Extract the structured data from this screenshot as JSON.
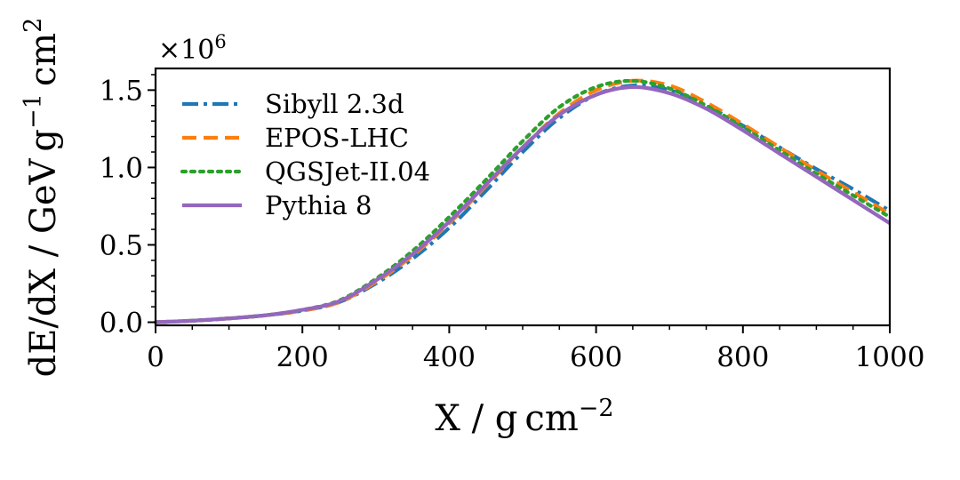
{
  "chart_data": {
    "type": "line",
    "title": "",
    "xlabel_main": "X / g",
    "xlabel_unit": "cm",
    "xlabel_exp": "−2",
    "ylabel_main": "dE/dX / GeV",
    "ylabel_g": "g",
    "ylabel_g_exp": "−1",
    "ylabel_cm": "cm",
    "ylabel_cm_exp": "2",
    "offset_base": "×10",
    "offset_exp": "6",
    "xlim": [
      0,
      1000
    ],
    "ylim": [
      -0.02,
      1.64
    ],
    "xticks": [
      0,
      200,
      400,
      600,
      800,
      1000
    ],
    "xtick_labels": [
      "0",
      "200",
      "400",
      "600",
      "800",
      "1000"
    ],
    "yticks": [
      0.0,
      0.5,
      1.0,
      1.5
    ],
    "ytick_labels": [
      "0.0",
      "0.5",
      "1.0",
      "1.5"
    ],
    "legend_position": "upper-left",
    "x": [
      0,
      50,
      100,
      150,
      200,
      250,
      300,
      350,
      400,
      450,
      500,
      550,
      600,
      650,
      700,
      750,
      800,
      850,
      900,
      950,
      1000
    ],
    "series": [
      {
        "name": "Sibyll 2.3d",
        "color": "#1f77b4",
        "dash": "dashdot",
        "values": [
          0.0,
          0.01,
          0.025,
          0.045,
          0.075,
          0.13,
          0.25,
          0.41,
          0.61,
          0.85,
          1.1,
          1.32,
          1.47,
          1.53,
          1.5,
          1.4,
          1.27,
          1.13,
          0.99,
          0.86,
          0.72
        ]
      },
      {
        "name": "EPOS-LHC",
        "color": "#ff7f0e",
        "dash": "dashed",
        "values": [
          0.0,
          0.01,
          0.025,
          0.045,
          0.075,
          0.13,
          0.26,
          0.43,
          0.64,
          0.88,
          1.13,
          1.35,
          1.5,
          1.56,
          1.53,
          1.42,
          1.28,
          1.13,
          0.98,
          0.84,
          0.7
        ]
      },
      {
        "name": "QGSJet-II.04",
        "color": "#2ca02c",
        "dash": "dotted",
        "values": [
          0.0,
          0.01,
          0.025,
          0.045,
          0.08,
          0.14,
          0.28,
          0.46,
          0.68,
          0.92,
          1.17,
          1.39,
          1.52,
          1.56,
          1.51,
          1.4,
          1.26,
          1.11,
          0.96,
          0.82,
          0.68
        ]
      },
      {
        "name": "Pythia 8",
        "color": "#9467bd",
        "dash": "solid",
        "values": [
          0.0,
          0.01,
          0.025,
          0.045,
          0.08,
          0.135,
          0.27,
          0.44,
          0.65,
          0.89,
          1.13,
          1.34,
          1.47,
          1.52,
          1.48,
          1.38,
          1.24,
          1.09,
          0.94,
          0.79,
          0.64
        ]
      }
    ]
  }
}
